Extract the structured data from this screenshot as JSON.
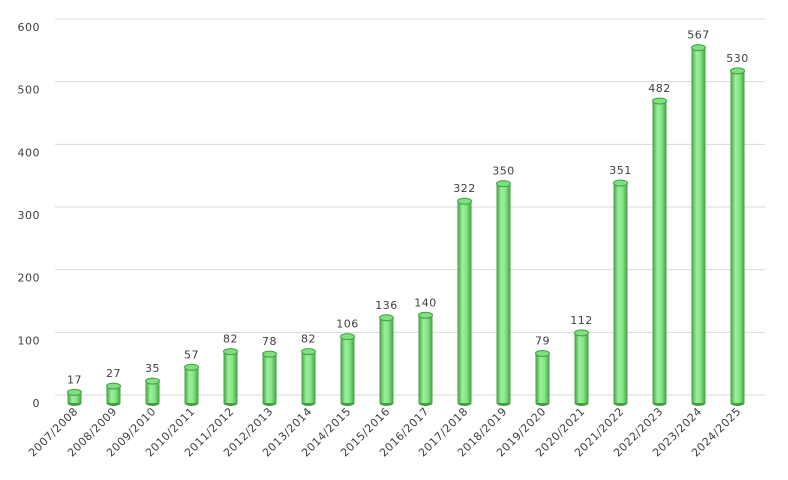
{
  "chart_data": {
    "type": "bar",
    "categories": [
      "2007/2008",
      "2008/2009",
      "2009/2010",
      "2010/2011",
      "2011/2012",
      "2012/2013",
      "2013/2014",
      "2014/2015",
      "2015/2016",
      "2016/2017",
      "2017/2018",
      "2018/2019",
      "2019/2020",
      "2020/2021",
      "2021/2022",
      "2022/2023",
      "2023/2024",
      "2024/2025"
    ],
    "values": [
      17,
      27,
      35,
      57,
      82,
      78,
      82,
      106,
      136,
      140,
      322,
      350,
      79,
      112,
      351,
      482,
      567,
      530
    ],
    "color": "#7ee07e",
    "ylim": [
      0,
      600
    ],
    "yticks": [
      0,
      100,
      200,
      300,
      400,
      500,
      600
    ],
    "grid": true
  }
}
